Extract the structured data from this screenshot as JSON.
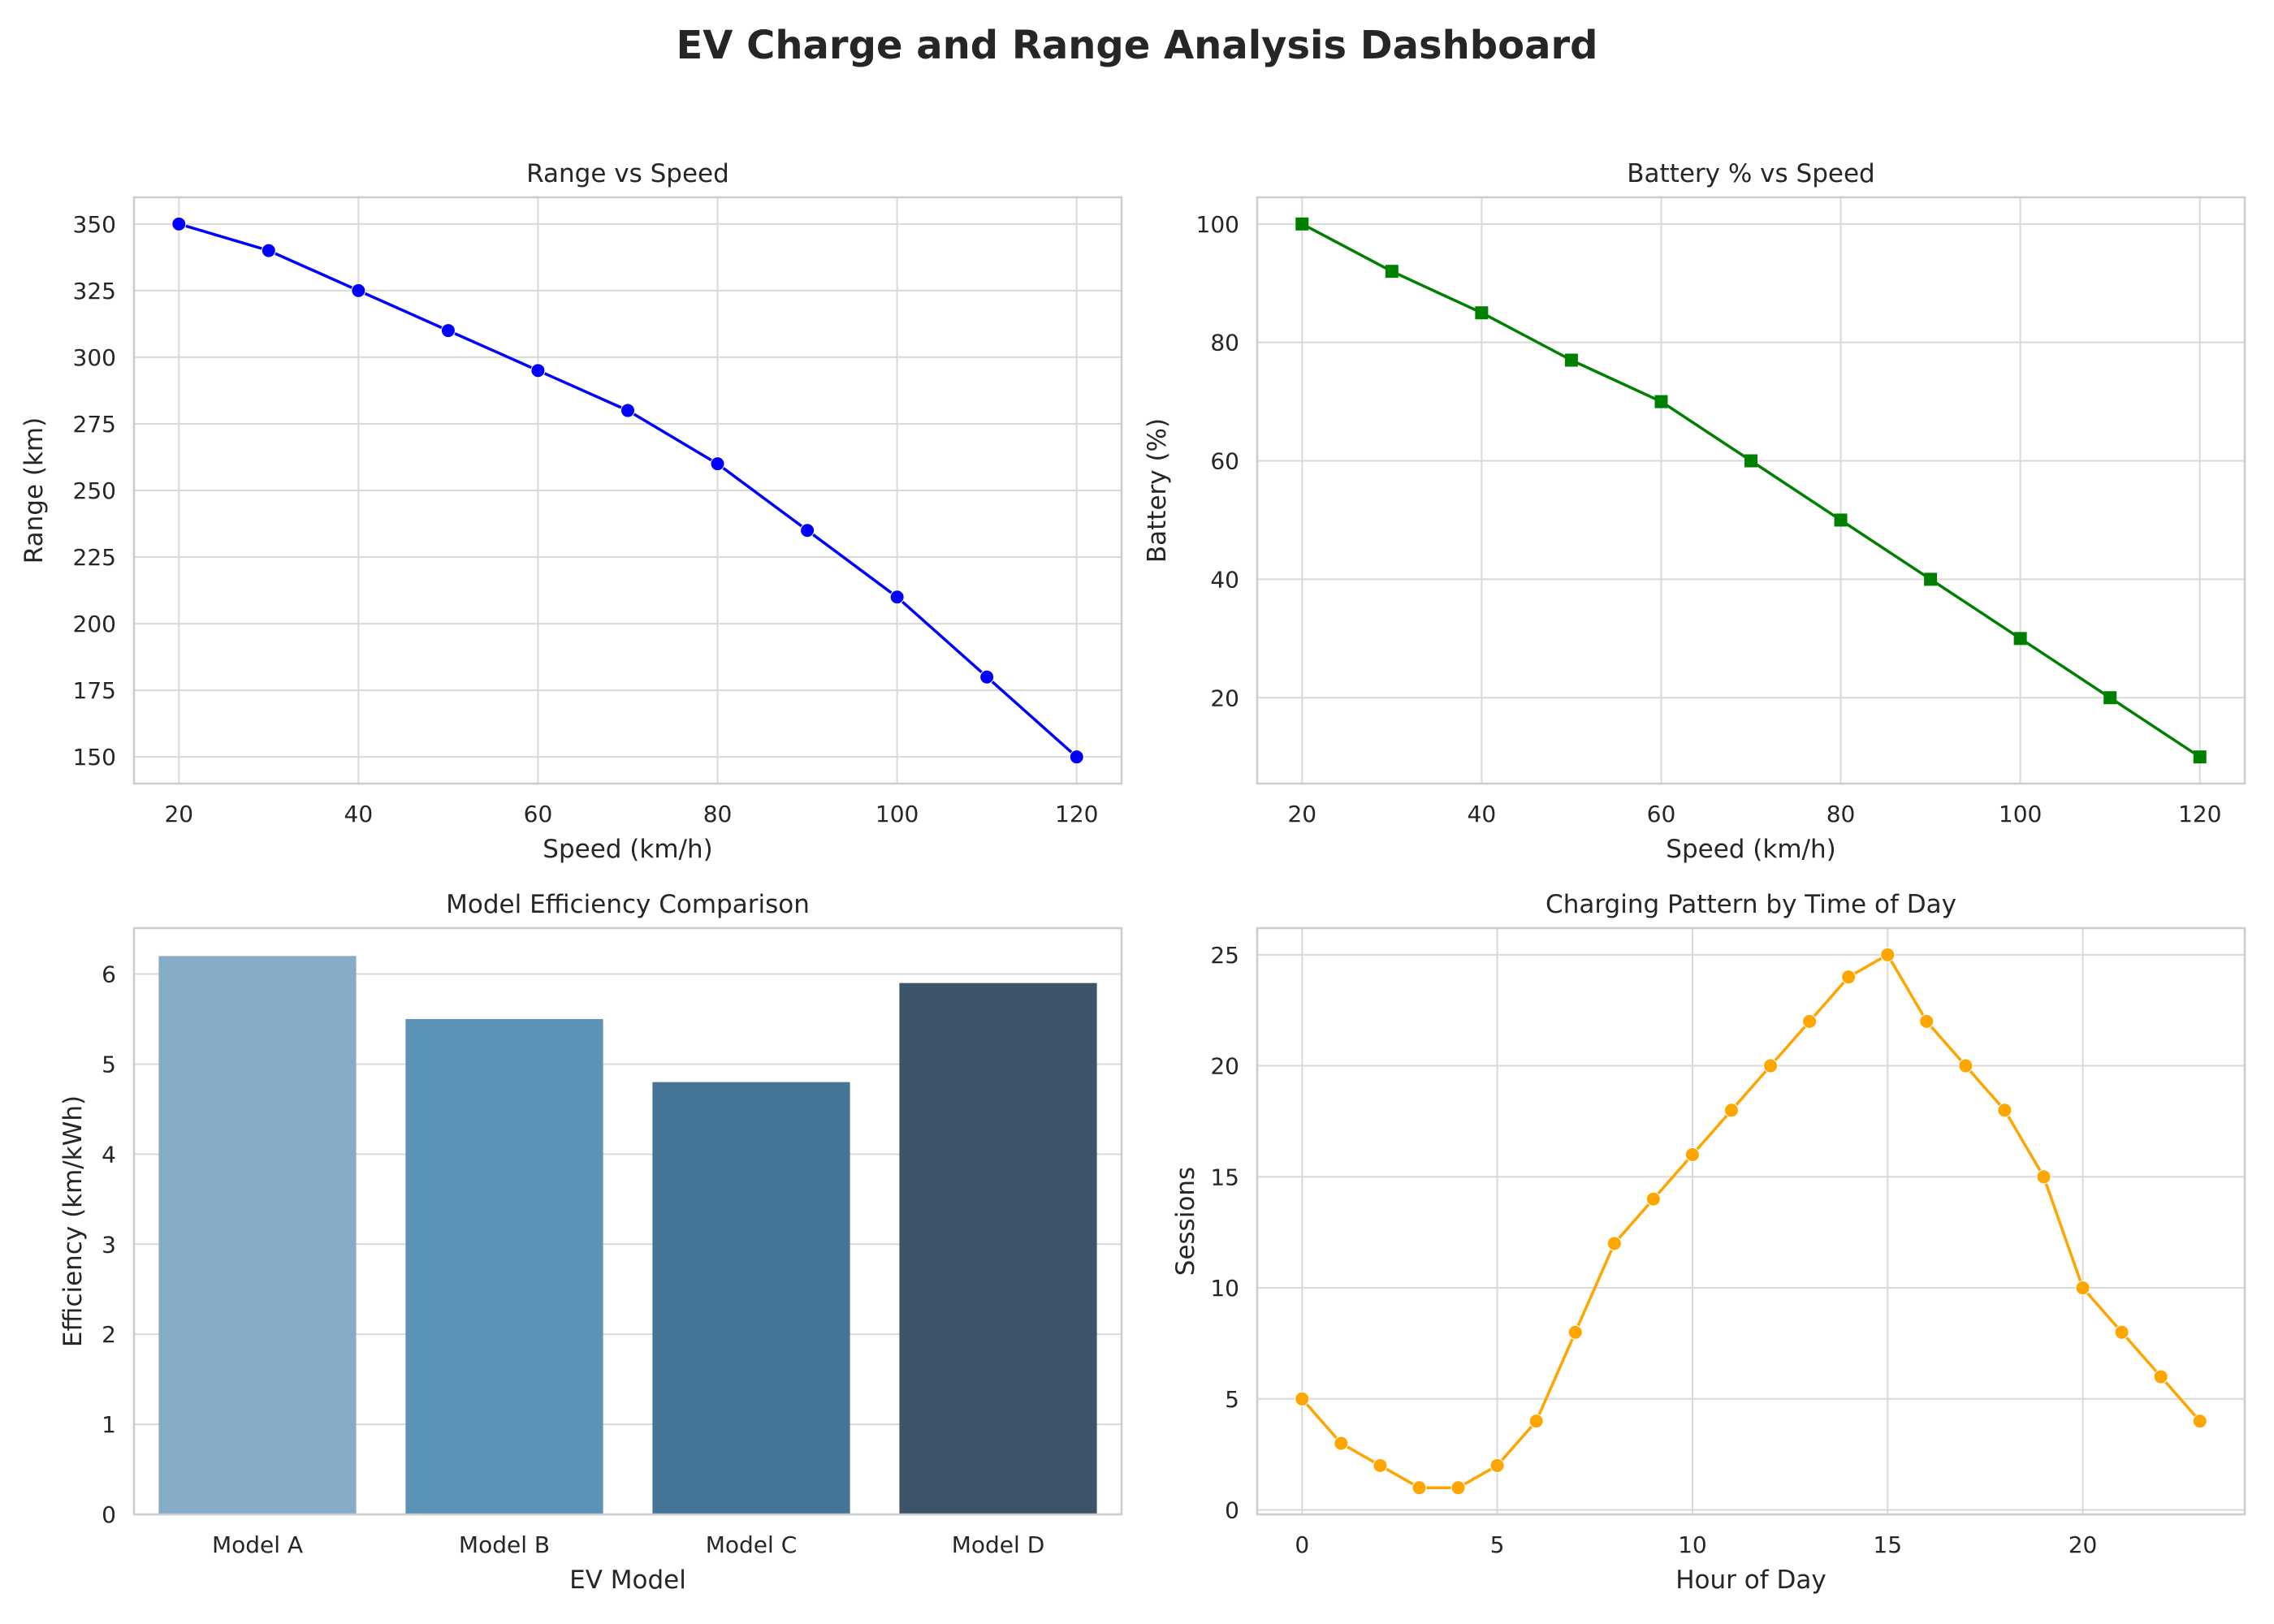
{
  "title": "EV Charge and Range Analysis Dashboard",
  "chart_data": [
    {
      "type": "line",
      "title": "Range vs Speed",
      "xlabel": "Speed (km/h)",
      "ylabel": "Range (km)",
      "x": [
        20,
        30,
        40,
        50,
        60,
        70,
        80,
        90,
        100,
        110,
        120
      ],
      "series": [
        {
          "values": [
            350,
            340,
            325,
            310,
            295,
            280,
            260,
            235,
            210,
            180,
            150
          ]
        }
      ],
      "xlim": [
        15,
        125
      ],
      "ylim": [
        140,
        360
      ],
      "xticks": [
        20,
        40,
        60,
        80,
        100,
        120
      ],
      "yticks": [
        150,
        175,
        200,
        225,
        250,
        275,
        300,
        325,
        350
      ],
      "marker": "circle",
      "color": "#0000ff",
      "grid": true
    },
    {
      "type": "line",
      "title": "Battery % vs Speed",
      "xlabel": "Speed (km/h)",
      "ylabel": "Battery (%)",
      "x": [
        20,
        30,
        40,
        50,
        60,
        70,
        80,
        90,
        100,
        110,
        120
      ],
      "series": [
        {
          "values": [
            100,
            92,
            85,
            77,
            70,
            60,
            50,
            40,
            30,
            20,
            10
          ]
        }
      ],
      "xlim": [
        15,
        125
      ],
      "ylim": [
        5.5,
        104.5
      ],
      "xticks": [
        20,
        40,
        60,
        80,
        100,
        120
      ],
      "yticks": [
        20,
        40,
        60,
        80,
        100
      ],
      "marker": "square",
      "color": "#008000",
      "grid": true
    },
    {
      "type": "bar",
      "title": "Model Efficiency Comparison",
      "xlabel": "EV Model",
      "ylabel": "Efficiency (km/kWh)",
      "categories": [
        "Model A",
        "Model B",
        "Model C",
        "Model D"
      ],
      "values": [
        6.2,
        5.5,
        4.8,
        5.9
      ],
      "colors": [
        "#86adc8",
        "#5b92b8",
        "#447596",
        "#3d5468"
      ],
      "ylim": [
        0,
        6.51
      ],
      "yticks": [
        0,
        1,
        2,
        3,
        4,
        5,
        6
      ],
      "grid": true
    },
    {
      "type": "line",
      "title": "Charging Pattern by Time of Day",
      "xlabel": "Hour of Day",
      "ylabel": "Sessions",
      "x": [
        0,
        1,
        2,
        3,
        4,
        5,
        6,
        7,
        8,
        9,
        10,
        11,
        12,
        13,
        14,
        15,
        16,
        17,
        18,
        19,
        20,
        21,
        22,
        23
      ],
      "series": [
        {
          "values": [
            5,
            3,
            2,
            1,
            1,
            2,
            4,
            8,
            12,
            14,
            16,
            18,
            20,
            22,
            24,
            25,
            22,
            20,
            18,
            15,
            10,
            8,
            6,
            4
          ]
        }
      ],
      "xlim": [
        -1.15,
        24.15
      ],
      "ylim": [
        -0.2,
        26.2
      ],
      "xticks": [
        0,
        5,
        10,
        15,
        20
      ],
      "yticks": [
        0,
        5,
        10,
        15,
        20,
        25
      ],
      "marker": "circle",
      "color": "#ffa500",
      "grid": true
    }
  ]
}
